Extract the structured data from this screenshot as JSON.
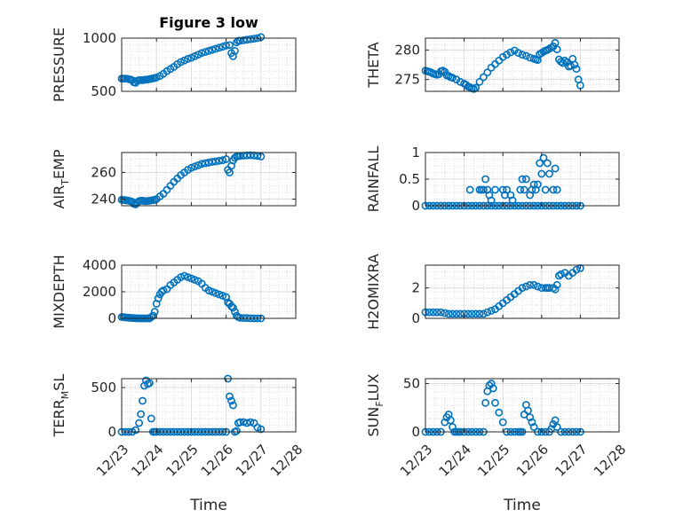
{
  "figure": {
    "title": "Figure 3 low",
    "xlabel": "Time"
  },
  "colors": {
    "marker": "#0072BD",
    "axis": "#262626",
    "grid": "#dcdcdc"
  },
  "x_ticks": [
    "12/23",
    "12/24",
    "12/25",
    "12/26",
    "12/27",
    "12/28"
  ],
  "chart_data": [
    {
      "type": "scatter",
      "id": "pressure",
      "title": "Figure 3 low",
      "ylabel": "PRESSURE",
      "xlabel": "",
      "xlim": [
        "12/23",
        "12/28"
      ],
      "ylim": [
        500,
        1000
      ],
      "yticks": [
        500,
        1000
      ],
      "grid": true,
      "series": [
        {
          "x": [
            0.0,
            0.05,
            0.1,
            0.15,
            0.2,
            0.25,
            0.3,
            0.35,
            0.4,
            0.45,
            0.5,
            0.55,
            0.6,
            0.65,
            0.7,
            0.75,
            0.8,
            0.85,
            0.9,
            0.95,
            1.0,
            1.1,
            1.2,
            1.3,
            1.4,
            1.5,
            1.6,
            1.7,
            1.8,
            1.9,
            2.0,
            2.1,
            2.2,
            2.3,
            2.4,
            2.5,
            2.6,
            2.7,
            2.8,
            2.9,
            3.0,
            3.1,
            3.15,
            3.2,
            3.25,
            3.3,
            3.35,
            3.4,
            3.5,
            3.6,
            3.7,
            3.8,
            3.9,
            4.0
          ],
          "y": [
            620,
            620,
            620,
            618,
            615,
            612,
            605,
            585,
            580,
            600,
            605,
            605,
            605,
            608,
            610,
            612,
            615,
            618,
            622,
            625,
            630,
            645,
            665,
            690,
            710,
            730,
            755,
            775,
            790,
            805,
            815,
            830,
            845,
            860,
            870,
            880,
            890,
            900,
            910,
            920,
            930,
            935,
            860,
            830,
            880,
            960,
            975,
            975,
            980,
            985,
            990,
            995,
            1000,
            1010
          ]
        }
      ]
    },
    {
      "type": "scatter",
      "id": "theta",
      "title": "",
      "ylabel": "THETA",
      "xlabel": "",
      "xlim": [
        "12/23",
        "12/28"
      ],
      "ylim": [
        273,
        282
      ],
      "yticks": [
        275,
        280
      ],
      "grid": true,
      "series": [
        {
          "x": [
            0.0,
            0.05,
            0.1,
            0.15,
            0.2,
            0.25,
            0.3,
            0.35,
            0.4,
            0.45,
            0.5,
            0.55,
            0.6,
            0.65,
            0.7,
            0.8,
            0.9,
            1.0,
            1.05,
            1.1,
            1.15,
            1.2,
            1.25,
            1.3,
            1.4,
            1.5,
            1.6,
            1.7,
            1.8,
            1.9,
            2.0,
            2.1,
            2.2,
            2.3,
            2.4,
            2.5,
            2.6,
            2.7,
            2.8,
            2.85,
            2.9,
            2.95,
            3.0,
            3.05,
            3.1,
            3.15,
            3.2,
            3.25,
            3.3,
            3.35,
            3.4,
            3.45,
            3.5,
            3.55,
            3.6,
            3.65,
            3.7,
            3.75,
            3.8,
            3.85,
            3.9,
            3.95,
            4.0
          ],
          "y": [
            276.5,
            276.4,
            276.3,
            276.2,
            276.0,
            275.9,
            275.8,
            275.9,
            276.4,
            276.5,
            276.3,
            275.7,
            275.6,
            275.4,
            275.3,
            275.0,
            274.6,
            274.3,
            274.1,
            273.8,
            273.7,
            273.5,
            273.4,
            273.6,
            274.6,
            275.4,
            276.2,
            277.0,
            277.6,
            278.2,
            278.8,
            279.2,
            279.6,
            279.9,
            279.5,
            279.2,
            279.0,
            278.7,
            278.5,
            278.4,
            278.3,
            279.3,
            279.5,
            279.7,
            279.9,
            280.0,
            280.2,
            280.4,
            280.6,
            281.2,
            280.1,
            278.4,
            278.0,
            277.8,
            278.2,
            277.9,
            277.2,
            277.3,
            278.5,
            277.5,
            276.8,
            275.0,
            274.0
          ]
        }
      ]
    },
    {
      "type": "scatter",
      "id": "air_temp",
      "title": "",
      "ylabel": "AIR_TEMP",
      "xlabel": "",
      "xlim": [
        "12/23",
        "12/28"
      ],
      "ylim": [
        235,
        275
      ],
      "yticks": [
        240,
        260
      ],
      "grid": true,
      "series": [
        {
          "x": [
            0.0,
            0.05,
            0.1,
            0.15,
            0.2,
            0.25,
            0.3,
            0.35,
            0.4,
            0.45,
            0.5,
            0.55,
            0.6,
            0.65,
            0.7,
            0.75,
            0.8,
            0.85,
            0.9,
            0.95,
            1.0,
            1.1,
            1.2,
            1.3,
            1.4,
            1.5,
            1.6,
            1.7,
            1.8,
            1.9,
            2.0,
            2.1,
            2.2,
            2.3,
            2.4,
            2.5,
            2.6,
            2.7,
            2.8,
            2.9,
            3.0,
            3.05,
            3.1,
            3.15,
            3.2,
            3.25,
            3.3,
            3.35,
            3.4,
            3.5,
            3.6,
            3.7,
            3.8,
            3.9,
            4.0
          ],
          "y": [
            239.5,
            239.3,
            239.2,
            239.0,
            238.8,
            238.5,
            238.0,
            236.5,
            236.0,
            237.5,
            238.5,
            238.8,
            238.8,
            238.6,
            238.5,
            238.6,
            238.8,
            239.0,
            239.2,
            239.4,
            240.0,
            242.0,
            244.0,
            247.0,
            250.0,
            253.0,
            255.5,
            258.0,
            260.0,
            262.0,
            263.5,
            264.5,
            265.5,
            266.5,
            267.0,
            267.5,
            268.0,
            268.3,
            268.8,
            269.2,
            270.0,
            262.0,
            260.0,
            265.0,
            269.0,
            271.0,
            272.0,
            272.3,
            272.5,
            272.7,
            272.9,
            273.0,
            272.8,
            272.5,
            272.0
          ]
        }
      ]
    },
    {
      "type": "scatter",
      "id": "rainfall",
      "title": "",
      "ylabel": "RAINFALL",
      "xlabel": "",
      "xlim": [
        "12/23",
        "12/28"
      ],
      "ylim": [
        0,
        1
      ],
      "yticks": [
        0,
        0.5,
        1
      ],
      "grid": true,
      "series": [
        {
          "x": [
            0.0,
            0.1,
            0.2,
            0.3,
            0.4,
            0.5,
            0.6,
            0.7,
            0.8,
            0.9,
            1.0,
            1.1,
            1.2,
            1.3,
            1.4,
            1.5,
            1.6,
            1.7,
            1.8,
            1.9,
            2.0,
            2.1,
            2.2,
            2.3,
            2.4,
            2.5,
            2.6,
            2.7,
            2.8,
            2.9,
            3.0,
            3.1,
            3.2,
            3.3,
            3.4,
            3.5,
            3.6,
            3.7,
            3.8,
            3.9,
            4.0,
            1.15,
            1.4,
            1.45,
            1.5,
            1.55,
            1.6,
            1.65,
            1.7,
            1.8,
            2.0,
            2.05,
            2.1,
            2.2,
            2.25,
            2.45,
            2.5,
            2.55,
            2.6,
            2.7,
            2.75,
            2.8,
            2.85,
            2.9,
            2.95,
            3.0,
            3.05,
            3.1,
            3.15,
            3.2,
            3.3,
            3.35,
            3.4
          ],
          "y": [
            0,
            0,
            0,
            0,
            0,
            0,
            0,
            0,
            0,
            0,
            0,
            0,
            0,
            0,
            0,
            0,
            0,
            0,
            0,
            0,
            0,
            0,
            0,
            0,
            0,
            0,
            0,
            0,
            0,
            0,
            0,
            0,
            0,
            0,
            0,
            0,
            0,
            0,
            0,
            0,
            0,
            0.3,
            0.3,
            0.3,
            0.3,
            0.5,
            0.3,
            0.2,
            0.1,
            0.3,
            0.3,
            0.2,
            0.3,
            0.2,
            0.1,
            0.3,
            0.5,
            0.3,
            0.5,
            0.2,
            0.3,
            0.4,
            0.3,
            0.4,
            0.8,
            0.6,
            0.9,
            0.3,
            0.8,
            0.6,
            0.3,
            0.7,
            0.3
          ]
        }
      ]
    },
    {
      "type": "scatter",
      "id": "mixdepth",
      "title": "",
      "ylabel": "MIXDEPTH",
      "xlabel": "",
      "xlim": [
        "12/23",
        "12/28"
      ],
      "ylim": [
        0,
        4000
      ],
      "yticks": [
        0,
        2000,
        4000
      ],
      "grid": true,
      "series": [
        {
          "x": [
            0.0,
            0.05,
            0.1,
            0.15,
            0.2,
            0.25,
            0.3,
            0.35,
            0.4,
            0.45,
            0.5,
            0.55,
            0.6,
            0.65,
            0.7,
            0.75,
            0.8,
            0.85,
            0.9,
            0.95,
            1.0,
            1.05,
            1.1,
            1.15,
            1.2,
            1.3,
            1.4,
            1.5,
            1.6,
            1.7,
            1.8,
            1.9,
            2.0,
            2.1,
            2.2,
            2.3,
            2.4,
            2.5,
            2.6,
            2.7,
            2.8,
            2.9,
            3.0,
            3.05,
            3.1,
            3.15,
            3.2,
            3.25,
            3.3,
            3.35,
            3.4,
            3.5,
            3.6,
            3.7,
            3.8,
            3.9,
            4.0
          ],
          "y": [
            100,
            100,
            80,
            60,
            50,
            40,
            30,
            20,
            10,
            5,
            0,
            0,
            0,
            0,
            0,
            0,
            0,
            100,
            200,
            500,
            1100,
            1500,
            1800,
            2000,
            2100,
            2200,
            2500,
            2700,
            2900,
            3100,
            3200,
            3100,
            3000,
            2900,
            2800,
            2600,
            2300,
            2100,
            2000,
            1900,
            1800,
            1700,
            1600,
            1200,
            1100,
            900,
            800,
            500,
            200,
            100,
            50,
            30,
            20,
            10,
            0,
            0,
            0
          ]
        }
      ]
    },
    {
      "type": "scatter",
      "id": "h2omixra",
      "title": "",
      "ylabel": "H2OMIXRA",
      "xlabel": "",
      "xlim": [
        "12/23",
        "12/28"
      ],
      "ylim": [
        0,
        3.5
      ],
      "yticks": [
        0,
        2
      ],
      "grid": true,
      "series": [
        {
          "x": [
            0.0,
            0.1,
            0.2,
            0.3,
            0.4,
            0.5,
            0.6,
            0.7,
            0.8,
            0.9,
            1.0,
            1.1,
            1.2,
            1.3,
            1.4,
            1.5,
            1.6,
            1.7,
            1.8,
            1.9,
            2.0,
            2.1,
            2.2,
            2.3,
            2.4,
            2.5,
            2.6,
            2.7,
            2.8,
            2.9,
            3.0,
            3.1,
            3.15,
            3.2,
            3.3,
            3.35,
            3.4,
            3.45,
            3.5,
            3.6,
            3.7,
            3.8,
            3.9,
            4.0
          ],
          "y": [
            0.4,
            0.4,
            0.4,
            0.4,
            0.4,
            0.35,
            0.3,
            0.3,
            0.3,
            0.3,
            0.3,
            0.3,
            0.3,
            0.3,
            0.3,
            0.3,
            0.4,
            0.5,
            0.6,
            0.8,
            1.0,
            1.2,
            1.4,
            1.6,
            1.8,
            2.0,
            2.1,
            2.2,
            2.2,
            2.1,
            2.0,
            2.0,
            2.0,
            2.0,
            2.0,
            1.9,
            2.2,
            2.8,
            2.9,
            3.0,
            2.8,
            3.0,
            3.2,
            3.3
          ]
        }
      ]
    },
    {
      "type": "scatter",
      "id": "terr_msl",
      "title": "",
      "ylabel": "TERR_MSL",
      "xlabel": "",
      "xlim": [
        "12/23",
        "12/28"
      ],
      "ylim": [
        0,
        600
      ],
      "yticks": [
        0,
        500
      ],
      "grid": true,
      "series": [
        {
          "x": [
            0.0,
            0.1,
            0.2,
            0.3,
            0.4,
            0.5,
            0.55,
            0.6,
            0.65,
            0.7,
            0.75,
            0.8,
            0.85,
            0.9,
            0.95,
            1.0,
            1.1,
            1.2,
            1.3,
            1.4,
            1.5,
            1.6,
            1.7,
            1.8,
            1.9,
            2.0,
            2.1,
            2.2,
            2.3,
            2.4,
            2.5,
            2.6,
            2.7,
            2.8,
            2.9,
            3.0,
            3.05,
            3.1,
            3.15,
            3.2,
            3.25,
            3.3,
            3.35,
            3.4,
            3.5,
            3.6,
            3.7,
            3.8,
            3.9,
            4.0
          ],
          "y": [
            0,
            0,
            0,
            0,
            20,
            100,
            200,
            350,
            520,
            580,
            540,
            550,
            150,
            0,
            0,
            0,
            0,
            0,
            0,
            0,
            0,
            0,
            0,
            0,
            0,
            0,
            0,
            0,
            0,
            0,
            0,
            0,
            0,
            0,
            0,
            0,
            600,
            400,
            350,
            300,
            0,
            10,
            100,
            110,
            110,
            100,
            110,
            100,
            50,
            30
          ]
        }
      ]
    },
    {
      "type": "scatter",
      "id": "sun_flux",
      "title": "",
      "ylabel": "SUN_FLUX",
      "xlabel": "",
      "xlim": [
        "12/23",
        "12/28"
      ],
      "ylim": [
        0,
        55
      ],
      "yticks": [
        0,
        50
      ],
      "grid": true,
      "series": [
        {
          "x": [
            0.0,
            0.1,
            0.2,
            0.3,
            0.4,
            0.5,
            0.55,
            0.6,
            0.65,
            0.7,
            0.75,
            0.8,
            0.85,
            0.9,
            1.0,
            1.1,
            1.2,
            1.3,
            1.4,
            1.5,
            1.55,
            1.6,
            1.65,
            1.7,
            1.75,
            1.8,
            1.9,
            2.0,
            2.1,
            2.2,
            2.3,
            2.4,
            2.45,
            2.5,
            2.55,
            2.6,
            2.65,
            2.7,
            2.75,
            2.8,
            2.9,
            3.0,
            3.1,
            3.2,
            3.25,
            3.3,
            3.35,
            3.4,
            3.5,
            3.6,
            3.7,
            3.8,
            3.9,
            4.0
          ],
          "y": [
            0,
            0,
            0,
            0,
            0,
            10,
            15,
            18,
            12,
            5,
            0,
            0,
            0,
            0,
            0,
            0,
            0,
            0,
            0,
            0,
            30,
            42,
            48,
            50,
            45,
            30,
            20,
            10,
            0,
            0,
            0,
            0,
            0,
            0,
            18,
            28,
            22,
            15,
            10,
            5,
            0,
            0,
            0,
            0,
            3,
            8,
            12,
            5,
            0,
            0,
            0,
            0,
            0,
            0
          ]
        }
      ]
    }
  ]
}
